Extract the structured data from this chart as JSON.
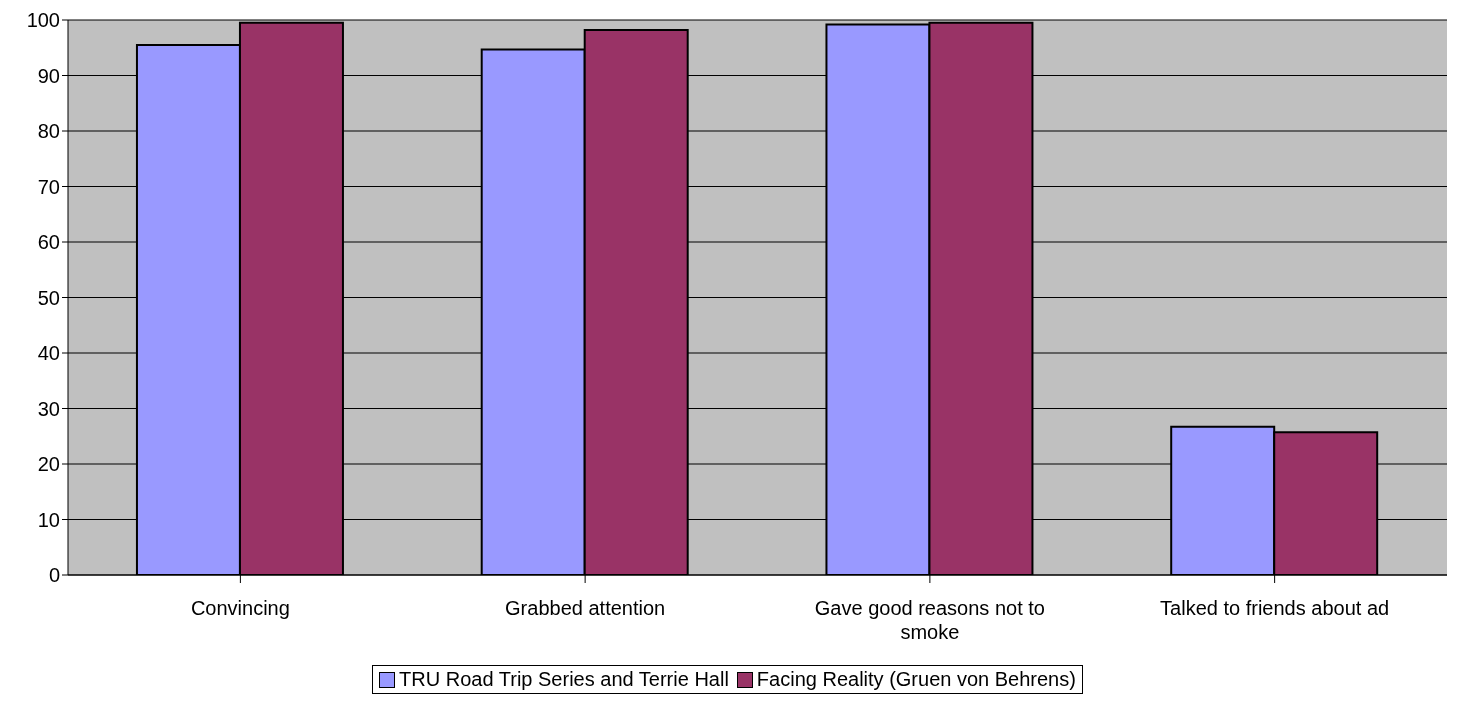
{
  "chart_data": {
    "type": "bar",
    "categories": [
      "Convincing",
      "Grabbed  attention",
      "Gave good reasons not to smoke",
      "Talked to friends about ad"
    ],
    "series": [
      {
        "name": "TRU Road Trip Series and Terrie Hall",
        "color": "#9999ff",
        "values": [
          95.5,
          94.7,
          99.2,
          26.7
        ]
      },
      {
        "name": "Facing Reality (Gruen von Behrens)",
        "color": "#993366",
        "values": [
          99.5,
          98.2,
          99.5,
          25.7
        ]
      }
    ],
    "ylim": [
      0,
      100
    ],
    "yticks": [
      0,
      10,
      20,
      30,
      40,
      50,
      60,
      70,
      80,
      90,
      100
    ],
    "grid": "y",
    "legend": "bottom"
  }
}
